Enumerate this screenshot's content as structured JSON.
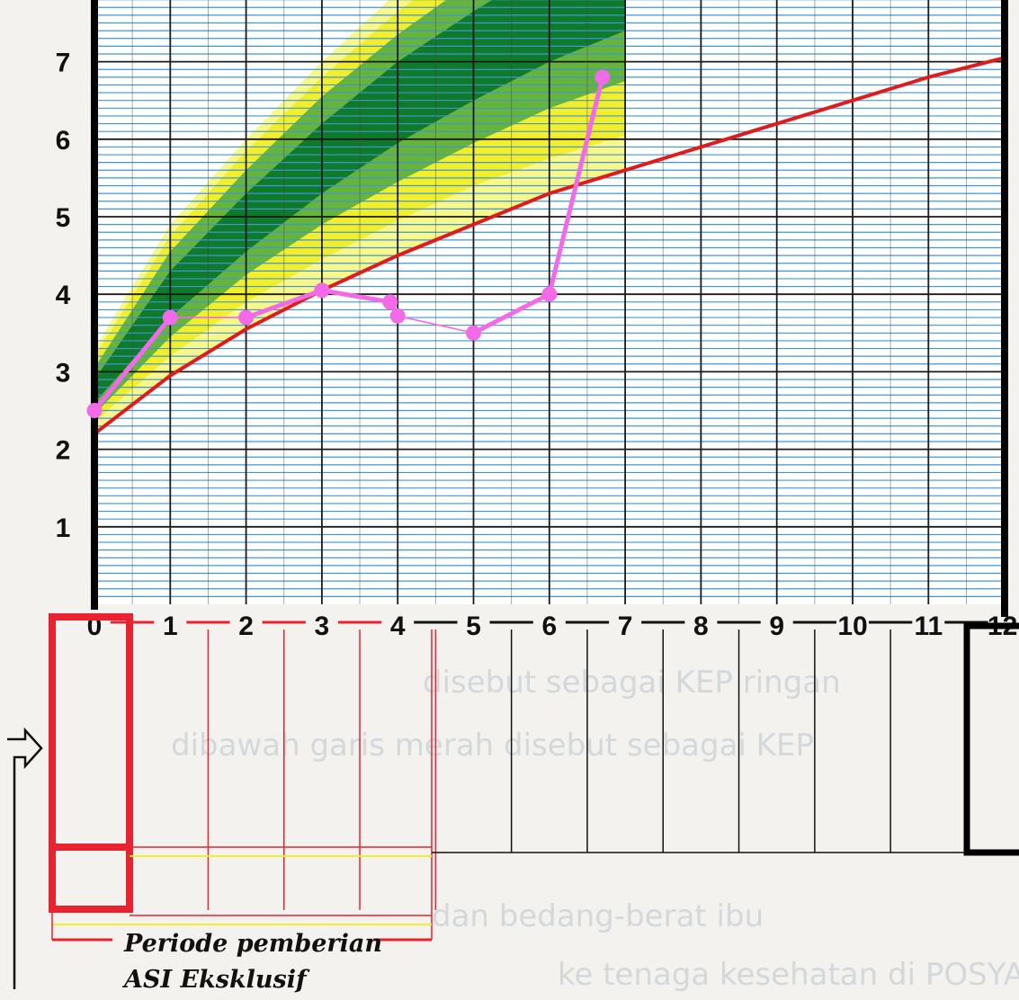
{
  "chart_data": {
    "type": "line",
    "title": "",
    "xlabel": "",
    "ylabel": "",
    "x_ticks": [
      "0",
      "1",
      "2",
      "3",
      "4",
      "5",
      "6",
      "7",
      "8",
      "9",
      "10",
      "11",
      "12"
    ],
    "y_ticks": [
      "1",
      "2",
      "3",
      "4",
      "5",
      "6",
      "7"
    ],
    "xlim": [
      0,
      12
    ],
    "ylim": [
      0,
      7.8
    ],
    "grid": true,
    "growth_bands": {
      "red_line": [
        [
          0,
          2.2
        ],
        [
          1,
          2.95
        ],
        [
          2,
          3.55
        ],
        [
          3,
          4.05
        ],
        [
          4,
          4.5
        ],
        [
          5,
          4.9
        ],
        [
          6,
          5.3
        ],
        [
          7,
          5.6
        ],
        [
          8,
          5.9
        ],
        [
          9,
          6.2
        ],
        [
          10,
          6.5
        ],
        [
          11,
          6.8
        ],
        [
          12,
          7.05
        ]
      ],
      "light_yellow_upper": [
        [
          0,
          3.3
        ],
        [
          1,
          4.9
        ],
        [
          2,
          6.0
        ],
        [
          3,
          7.0
        ],
        [
          4,
          7.9
        ],
        [
          5,
          8.6
        ],
        [
          6,
          9.2
        ],
        [
          7,
          9.7
        ]
      ],
      "yellow_upper": [
        [
          0,
          3.2
        ],
        [
          1,
          4.75
        ],
        [
          2,
          5.85
        ],
        [
          3,
          6.8
        ],
        [
          4,
          7.65
        ],
        [
          5,
          8.35
        ],
        [
          6,
          8.95
        ],
        [
          7,
          9.45
        ]
      ],
      "light_green_upper": [
        [
          0,
          3.05
        ],
        [
          1,
          4.55
        ],
        [
          2,
          5.6
        ],
        [
          3,
          6.55
        ],
        [
          4,
          7.35
        ],
        [
          5,
          8.05
        ],
        [
          6,
          8.6
        ],
        [
          7,
          9.1
        ]
      ],
      "dark_green_upper": [
        [
          0,
          2.9
        ],
        [
          1,
          4.3
        ],
        [
          2,
          5.3
        ],
        [
          3,
          6.2
        ],
        [
          4,
          7.0
        ],
        [
          5,
          7.65
        ],
        [
          6,
          8.25
        ],
        [
          7,
          8.7
        ]
      ],
      "dark_green_lower": [
        [
          0,
          2.6
        ],
        [
          1,
          3.7
        ],
        [
          2,
          4.55
        ],
        [
          3,
          5.3
        ],
        [
          4,
          5.95
        ],
        [
          5,
          6.5
        ],
        [
          6,
          7.0
        ],
        [
          7,
          7.4
        ]
      ],
      "light_green_lower": [
        [
          0,
          2.45
        ],
        [
          1,
          3.45
        ],
        [
          2,
          4.25
        ],
        [
          3,
          4.9
        ],
        [
          4,
          5.45
        ],
        [
          5,
          5.95
        ],
        [
          6,
          6.4
        ],
        [
          7,
          6.75
        ]
      ],
      "yellow_lower": [
        [
          0,
          2.35
        ],
        [
          1,
          3.2
        ],
        [
          2,
          3.9
        ],
        [
          3,
          4.45
        ],
        [
          4,
          4.95
        ],
        [
          5,
          5.4
        ],
        [
          6,
          5.75
        ],
        [
          7,
          6.05
        ]
      ]
    },
    "series": [
      {
        "values": [
          [
            0,
            2.5
          ],
          [
            1,
            3.7
          ],
          [
            2,
            3.7
          ],
          [
            3,
            4.05
          ],
          [
            3.9,
            3.9
          ],
          [
            4,
            3.72
          ],
          [
            5,
            3.5
          ],
          [
            6,
            4.0
          ],
          [
            6.7,
            6.8
          ]
        ]
      }
    ],
    "colors": {
      "red_line": "#e01b1b",
      "plot_line": "#f26ae8",
      "dark_green": "#0f7a2a",
      "light_green": "#66b43a",
      "yellow": "#f2ee2a",
      "light_yellow": "#f7f78a",
      "grid_blue": "#3d96dd"
    }
  },
  "caption": {
    "line1": "Periode pemberian",
    "line2": "ASI Eksklusif"
  },
  "background_text": [
    "disebut sebagai KEP ringan",
    "dibawah garis merah disebut sebagai KEP",
    "dan bedang-berat ibu",
    "ke tenaga kesehatan di POSYANDU"
  ]
}
